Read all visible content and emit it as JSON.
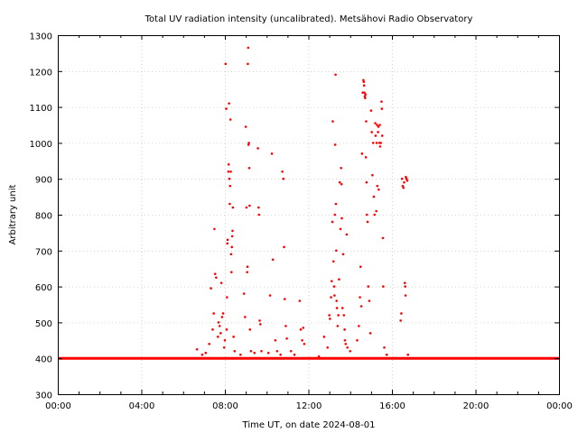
{
  "chart_data": {
    "type": "scatter",
    "title": "Total UV radiation intensity (uncalibrated). Metsähovi Radio Observatory",
    "xlabel": "Time UT, on date 2024-08-01",
    "ylabel": "Arbitrary unit",
    "xlim": [
      "00:00",
      "24:00"
    ],
    "ylim": [
      300,
      1300
    ],
    "x_ticks": [
      "00:00",
      "04:00",
      "08:00",
      "12:00",
      "16:00",
      "20:00",
      "00:00"
    ],
    "y_ticks": [
      300,
      400,
      500,
      600,
      700,
      800,
      900,
      1000,
      1100,
      1200,
      1300
    ],
    "grid": true,
    "legend": "none",
    "marker_color": "#ff0000",
    "baseline": 400,
    "series": [
      {
        "values": [
          [
            "06:40",
            425
          ],
          [
            "06:55",
            410
          ],
          [
            "07:05",
            415
          ],
          [
            "07:15",
            440
          ],
          [
            "07:20",
            595
          ],
          [
            "07:25",
            480
          ],
          [
            "07:28",
            525
          ],
          [
            "07:30",
            760
          ],
          [
            "07:32",
            635
          ],
          [
            "07:35",
            625
          ],
          [
            "07:40",
            460
          ],
          [
            "07:42",
            500
          ],
          [
            "07:45",
            490
          ],
          [
            "07:48",
            470
          ],
          [
            "07:50",
            610
          ],
          [
            "07:52",
            515
          ],
          [
            "07:55",
            525
          ],
          [
            "07:58",
            430
          ],
          [
            "08:00",
            450
          ],
          [
            "08:02",
            1220
          ],
          [
            "08:04",
            1095
          ],
          [
            "08:05",
            480
          ],
          [
            "08:06",
            570
          ],
          [
            "08:07",
            720
          ],
          [
            "08:08",
            730
          ],
          [
            "08:10",
            920
          ],
          [
            "08:11",
            940
          ],
          [
            "08:12",
            1110
          ],
          [
            "08:13",
            900
          ],
          [
            "08:14",
            830
          ],
          [
            "08:15",
            880
          ],
          [
            "08:16",
            1065
          ],
          [
            "08:17",
            920
          ],
          [
            "08:18",
            690
          ],
          [
            "08:19",
            640
          ],
          [
            "08:20",
            710
          ],
          [
            "08:21",
            740
          ],
          [
            "08:22",
            755
          ],
          [
            "08:23",
            820
          ],
          [
            "08:25",
            460
          ],
          [
            "08:28",
            420
          ],
          [
            "08:45",
            410
          ],
          [
            "08:55",
            580
          ],
          [
            "08:58",
            515
          ],
          [
            "09:00",
            1045
          ],
          [
            "09:02",
            820
          ],
          [
            "09:04",
            640
          ],
          [
            "09:05",
            655
          ],
          [
            "09:06",
            1220
          ],
          [
            "09:07",
            1265
          ],
          [
            "09:08",
            995
          ],
          [
            "09:09",
            1000
          ],
          [
            "09:10",
            930
          ],
          [
            "09:11",
            825
          ],
          [
            "09:12",
            480
          ],
          [
            "09:15",
            420
          ],
          [
            "09:25",
            415
          ],
          [
            "09:35",
            985
          ],
          [
            "09:37",
            820
          ],
          [
            "09:38",
            800
          ],
          [
            "09:40",
            505
          ],
          [
            "09:42",
            495
          ],
          [
            "09:45",
            420
          ],
          [
            "10:05",
            415
          ],
          [
            "10:10",
            575
          ],
          [
            "10:15",
            970
          ],
          [
            "10:18",
            675
          ],
          [
            "10:25",
            450
          ],
          [
            "10:30",
            420
          ],
          [
            "10:40",
            410
          ],
          [
            "10:45",
            920
          ],
          [
            "10:48",
            900
          ],
          [
            "10:50",
            710
          ],
          [
            "10:52",
            565
          ],
          [
            "10:55",
            490
          ],
          [
            "10:58",
            455
          ],
          [
            "11:10",
            420
          ],
          [
            "11:20",
            410
          ],
          [
            "11:35",
            560
          ],
          [
            "11:38",
            480
          ],
          [
            "11:42",
            450
          ],
          [
            "11:45",
            485
          ],
          [
            "11:48",
            440
          ],
          [
            "12:30",
            405
          ],
          [
            "12:45",
            460
          ],
          [
            "12:55",
            430
          ],
          [
            "13:00",
            520
          ],
          [
            "13:02",
            510
          ],
          [
            "13:05",
            570
          ],
          [
            "13:07",
            615
          ],
          [
            "13:09",
            780
          ],
          [
            "13:10",
            1060
          ],
          [
            "13:12",
            670
          ],
          [
            "13:14",
            600
          ],
          [
            "13:15",
            575
          ],
          [
            "13:16",
            800
          ],
          [
            "13:17",
            995
          ],
          [
            "13:18",
            1190
          ],
          [
            "13:19",
            830
          ],
          [
            "13:20",
            700
          ],
          [
            "13:21",
            560
          ],
          [
            "13:22",
            540
          ],
          [
            "13:24",
            490
          ],
          [
            "13:26",
            520
          ],
          [
            "13:28",
            620
          ],
          [
            "13:30",
            890
          ],
          [
            "13:32",
            760
          ],
          [
            "13:34",
            930
          ],
          [
            "13:35",
            885
          ],
          [
            "13:36",
            790
          ],
          [
            "13:38",
            540
          ],
          [
            "13:40",
            690
          ],
          [
            "13:42",
            520
          ],
          [
            "13:44",
            480
          ],
          [
            "13:45",
            450
          ],
          [
            "13:47",
            440
          ],
          [
            "13:50",
            745
          ],
          [
            "13:52",
            430
          ],
          [
            "14:00",
            420
          ],
          [
            "14:20",
            450
          ],
          [
            "14:25",
            490
          ],
          [
            "14:28",
            570
          ],
          [
            "14:30",
            655
          ],
          [
            "14:32",
            545
          ],
          [
            "14:34",
            970
          ],
          [
            "14:36",
            1140
          ],
          [
            "14:38",
            1175
          ],
          [
            "14:39",
            1170
          ],
          [
            "14:40",
            1160
          ],
          [
            "14:41",
            1140
          ],
          [
            "14:42",
            1130
          ],
          [
            "14:43",
            1125
          ],
          [
            "14:44",
            1135
          ],
          [
            "14:45",
            960
          ],
          [
            "14:46",
            1060
          ],
          [
            "14:47",
            890
          ],
          [
            "14:48",
            800
          ],
          [
            "14:50",
            780
          ],
          [
            "14:52",
            600
          ],
          [
            "14:55",
            560
          ],
          [
            "14:58",
            470
          ],
          [
            "15:00",
            1090
          ],
          [
            "15:02",
            1030
          ],
          [
            "15:04",
            910
          ],
          [
            "15:06",
            1000
          ],
          [
            "15:08",
            850
          ],
          [
            "15:10",
            800
          ],
          [
            "15:12",
            1055
          ],
          [
            "15:13",
            1020
          ],
          [
            "15:15",
            810
          ],
          [
            "15:16",
            1000
          ],
          [
            "15:17",
            1050
          ],
          [
            "15:18",
            880
          ],
          [
            "15:20",
            1030
          ],
          [
            "15:21",
            1045
          ],
          [
            "15:22",
            870
          ],
          [
            "15:24",
            1000
          ],
          [
            "15:25",
            1050
          ],
          [
            "15:26",
            990
          ],
          [
            "15:28",
            1000
          ],
          [
            "15:30",
            1115
          ],
          [
            "15:31",
            1095
          ],
          [
            "15:32",
            1020
          ],
          [
            "15:34",
            735
          ],
          [
            "15:35",
            600
          ],
          [
            "15:38",
            430
          ],
          [
            "15:45",
            410
          ],
          [
            "16:25",
            505
          ],
          [
            "16:27",
            525
          ],
          [
            "16:29",
            900
          ],
          [
            "16:31",
            880
          ],
          [
            "16:33",
            875
          ],
          [
            "16:35",
            890
          ],
          [
            "16:37",
            610
          ],
          [
            "16:38",
            600
          ],
          [
            "16:39",
            575
          ],
          [
            "16:40",
            905
          ],
          [
            "16:42",
            900
          ],
          [
            "16:44",
            895
          ],
          [
            "16:46",
            410
          ]
        ]
      }
    ]
  }
}
